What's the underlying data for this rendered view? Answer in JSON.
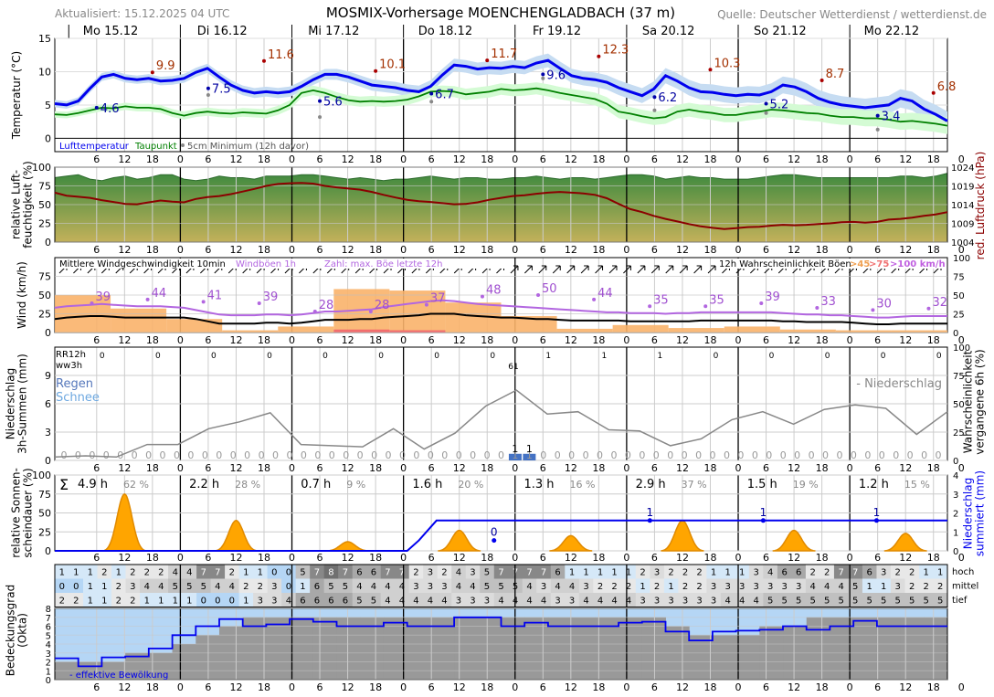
{
  "header": {
    "updated": "Aktualisiert: 15.12.2025 04 UTC",
    "title": "MOSMIX-Vorhersage MOENCHENGLADBACH (37 m)",
    "source": "Quelle: Deutscher Wetterdienst / wetterdienst.de"
  },
  "days": [
    "Mo 15.12",
    "Di 16.12",
    "Mi 17.12",
    "Do 18.12",
    "Fr 19.12",
    "Sa 20.12",
    "So 21.12",
    "Mo 22.12"
  ],
  "hour_ticks": [
    "6",
    "12",
    "18",
    "0"
  ],
  "colors": {
    "temp": "#0000ee",
    "dew": "#008000",
    "pressure": "#8b0000",
    "wind": "#000000",
    "gust": "#b266e0",
    "sun": "#ffa500",
    "precip_sum": "#0000ee",
    "cloud_fill": "#999999",
    "sky": "#b5d6f5"
  },
  "chart_data": [
    {
      "type": "line",
      "title": "",
      "ylabel": "Temperatur (°C)",
      "ylim": [
        -2,
        15
      ],
      "yticks": [
        0,
        5,
        10,
        15
      ],
      "legend": [
        "Lufttemperatur",
        "Taupunkt",
        "5cm Minimum (12h davor)"
      ],
      "series": [
        {
          "name": "Lufttemperatur",
          "values": [
            5.2,
            5.0,
            5.6,
            7.5,
            9.2,
            9.6,
            9.0,
            8.8,
            9.0,
            8.6,
            8.7,
            9.0,
            9.9,
            10.5,
            9.2,
            8.0,
            7.2,
            6.8,
            7.0,
            6.8,
            7.0,
            7.8,
            8.8,
            9.6,
            9.6,
            9.2,
            8.6,
            8.0,
            7.8,
            7.6,
            7.2,
            7.0,
            7.8,
            9.5,
            11.0,
            10.8,
            10.4,
            10.6,
            10.5,
            10.8,
            10.6,
            11.3,
            11.7,
            10.5,
            9.4,
            9.0,
            8.8,
            8.4,
            7.6,
            7.0,
            6.4,
            7.4,
            9.4,
            8.6,
            7.6,
            7.0,
            6.9,
            6.6,
            6.4,
            6.6,
            6.5,
            7.0,
            8.0,
            7.7,
            7.0,
            6.0,
            5.4,
            5.0,
            4.8,
            4.6,
            4.8,
            5.0,
            6.0,
            5.6,
            4.4,
            3.6,
            2.6
          ]
        },
        {
          "name": "Taupunkt",
          "values": [
            3.6,
            3.5,
            3.8,
            4.2,
            4.6,
            4.5,
            4.8,
            4.6,
            4.6,
            4.4,
            3.8,
            3.4,
            3.8,
            4.0,
            3.8,
            3.7,
            3.9,
            3.8,
            3.7,
            4.2,
            5.0,
            6.8,
            7.2,
            6.8,
            6.2,
            5.7,
            5.5,
            5.6,
            5.5,
            5.6,
            5.8,
            6.3,
            7.0,
            7.1,
            7.0,
            6.6,
            6.8,
            7.0,
            7.4,
            7.2,
            7.3,
            7.5,
            7.2,
            6.8,
            6.5,
            6.2,
            5.9,
            5.2,
            4.0,
            3.7,
            3.3,
            3.0,
            3.2,
            4.0,
            4.3,
            4.0,
            3.8,
            3.5,
            3.5,
            3.8,
            4.0,
            4.3,
            4.2,
            4.0,
            3.8,
            3.7,
            3.4,
            3.2,
            3.2,
            3.0,
            3.0,
            2.8,
            2.5,
            2.6,
            2.4,
            2.2,
            1.9
          ]
        }
      ],
      "max_labels": [
        {
          "day": 0,
          "hour": 18,
          "value": "9.9"
        },
        {
          "day": 1,
          "hour": 18,
          "value": "11.6"
        },
        {
          "day": 2,
          "hour": 18,
          "value": "10.1"
        },
        {
          "day": 3,
          "hour": 18,
          "value": "11.7"
        },
        {
          "day": 4,
          "hour": 18,
          "value": "12.3"
        },
        {
          "day": 5,
          "hour": 18,
          "value": "10.3"
        },
        {
          "day": 6,
          "hour": 18,
          "value": "8.7"
        },
        {
          "day": 7,
          "hour": 18,
          "value": "6.8"
        }
      ],
      "min_labels": [
        {
          "day": 0,
          "hour": 6,
          "value": "4.6",
          "ground": null
        },
        {
          "day": 1,
          "hour": 6,
          "value": "7.5",
          "ground": 6.5
        },
        {
          "day": 2,
          "hour": 6,
          "value": "5.6",
          "ground": 3.2
        },
        {
          "day": 3,
          "hour": 6,
          "value": "6.7",
          "ground": 5.5
        },
        {
          "day": 4,
          "hour": 6,
          "value": "9.6",
          "ground": 9.0
        },
        {
          "day": 5,
          "hour": 6,
          "value": "6.2",
          "ground": 4.2
        },
        {
          "day": 6,
          "hour": 6,
          "value": "5.2",
          "ground": 3.8
        },
        {
          "day": 7,
          "hour": 6,
          "value": "3.4",
          "ground": 1.3
        }
      ]
    },
    {
      "type": "area",
      "ylabel": "relative Luft-\nfeuchtigkeit (%)",
      "y2label": "red. Luftdruck (hPa)",
      "ylim": [
        0,
        100
      ],
      "yticks": [
        0,
        25,
        50,
        75,
        100
      ],
      "y2lim": [
        1004,
        1024
      ],
      "y2ticks": [
        1004,
        1009,
        1014,
        1019,
        1024
      ],
      "series": [
        {
          "name": "relative Luftfeuchtigkeit",
          "values": [
            86,
            88,
            90,
            84,
            82,
            86,
            88,
            84,
            86,
            90,
            90,
            84,
            82,
            84,
            88,
            86,
            86,
            84,
            88,
            88,
            88,
            90,
            90,
            88,
            86,
            84,
            86,
            84,
            82,
            84,
            84,
            86,
            88,
            86,
            84,
            86,
            86,
            84,
            84,
            86,
            86,
            88,
            86,
            84,
            86,
            86,
            84,
            86,
            88,
            90,
            90,
            88,
            84,
            86,
            88,
            86,
            86,
            84,
            84,
            84,
            86,
            88,
            90,
            90,
            88,
            86,
            86,
            86,
            86,
            86,
            86,
            86,
            88,
            88,
            86,
            88,
            92
          ]
        },
        {
          "name": "red. Luftdruck",
          "values": [
            1017.2,
            1016.4,
            1016.1,
            1015.8,
            1015.2,
            1014.7,
            1014.2,
            1014.1,
            1014.6,
            1015.1,
            1014.8,
            1014.6,
            1015.5,
            1016.0,
            1016.3,
            1016.8,
            1017.5,
            1018.2,
            1019.0,
            1019.5,
            1019.7,
            1019.8,
            1019.6,
            1019.0,
            1018.6,
            1018.3,
            1018.0,
            1017.4,
            1016.6,
            1015.9,
            1015.3,
            1014.9,
            1014.7,
            1014.4,
            1014.1,
            1014.2,
            1014.6,
            1015.3,
            1015.8,
            1016.3,
            1016.5,
            1016.9,
            1017.2,
            1017.4,
            1017.2,
            1017.0,
            1016.6,
            1015.7,
            1014.2,
            1012.8,
            1012.0,
            1011.0,
            1010.2,
            1009.5,
            1008.8,
            1008.2,
            1007.8,
            1007.5,
            1007.7,
            1008.0,
            1008.1,
            1008.4,
            1008.6,
            1008.5,
            1008.6,
            1008.8,
            1009.0,
            1009.3,
            1009.4,
            1009.2,
            1009.4,
            1010.0,
            1010.2,
            1010.5,
            1011.0,
            1011.4,
            1012.0
          ]
        }
      ]
    },
    {
      "type": "bar",
      "ylabel": "Wind (km/h)",
      "ylim": [
        0,
        100
      ],
      "yticks": [
        0,
        25,
        50,
        75
      ],
      "y2ticks": [
        0,
        25,
        50,
        75,
        100
      ],
      "legend_mean": "Mittlere Windgeschwindigkeit 10min",
      "legend_gust": "Windböen 1h",
      "legend_count": "Zahl: max. Böe letzte 12h",
      "legend_prob": "12h Wahrscheinlichkeit Böen",
      "prob_thresholds": [
        ">45",
        ">75",
        ">100 km/h"
      ],
      "mean": [
        18,
        20,
        21,
        22,
        22,
        21,
        20,
        20,
        20,
        20,
        20,
        20,
        18,
        15,
        12,
        12,
        12,
        12,
        13,
        13,
        12,
        13,
        15,
        17,
        17,
        17,
        18,
        18,
        20,
        21,
        22,
        23,
        25,
        25,
        25,
        23,
        22,
        21,
        20,
        20,
        19,
        18,
        18,
        17,
        16,
        16,
        16,
        16,
        16,
        15,
        15,
        15,
        15,
        15,
        15,
        16,
        16,
        16,
        16,
        16,
        16,
        16,
        15,
        15,
        14,
        14,
        14,
        14,
        13,
        12,
        11,
        11,
        12,
        12,
        12,
        12,
        12
      ],
      "gust": [
        33,
        35,
        36,
        37,
        38,
        37,
        36,
        35,
        35,
        35,
        34,
        33,
        30,
        27,
        24,
        23,
        23,
        23,
        24,
        24,
        23,
        24,
        26,
        28,
        28,
        29,
        30,
        31,
        34,
        36,
        38,
        40,
        42,
        43,
        42,
        40,
        38,
        37,
        36,
        35,
        34,
        33,
        32,
        31,
        30,
        29,
        28,
        27,
        27,
        26,
        26,
        26,
        25,
        26,
        26,
        27,
        27,
        27,
        27,
        27,
        27,
        27,
        26,
        25,
        24,
        24,
        23,
        23,
        22,
        21,
        20,
        20,
        21,
        22,
        22,
        22,
        22
      ],
      "prob_45": [
        50,
        32,
        18,
        3,
        8,
        58,
        56,
        40,
        22,
        5,
        10,
        6,
        8,
        4,
        3,
        3
      ],
      "prob_75": [
        0,
        0,
        0,
        0,
        0,
        4,
        3,
        0,
        0,
        0,
        0,
        0,
        0,
        0,
        0,
        0
      ],
      "max_labels": [
        "39",
        "44",
        "41",
        "39",
        "28",
        "28",
        "37",
        "48",
        "50",
        "44",
        "35",
        "35",
        "39",
        "33",
        "30",
        "32"
      ]
    },
    {
      "type": "line",
      "ylabel": "Niederschlag\n3h-Summen (mm)",
      "y2label": "Wahrscheinlichkeit\nvergangene 6h (%)",
      "ylim": [
        0,
        12
      ],
      "yticks": [
        0,
        3,
        6,
        9
      ],
      "y2ticks": [
        0,
        25,
        50,
        75,
        100
      ],
      "rr12h_label": "RR12h",
      "ww3h_label": "ww3h",
      "rain_label": "Regen",
      "snow_label": "Schnee",
      "legend": "- Niederschlag",
      "rr12h": [
        "0",
        "0",
        "0",
        "0",
        "0",
        "0",
        "0",
        "0",
        "1",
        "1",
        "1",
        "0",
        "0",
        "0",
        "0",
        "0"
      ],
      "ww3h_code": "61",
      "precip_3h": [
        "0",
        "0",
        "0",
        "0",
        "0",
        "0",
        "0",
        "0",
        "0",
        "0",
        "0",
        "0",
        "0",
        "0",
        "0",
        "0",
        "0",
        "0",
        "0",
        "0",
        "0",
        "0",
        "0",
        "0",
        "0",
        "0",
        "0",
        "0",
        "0",
        "0",
        "0",
        "0",
        "1",
        "1",
        "0",
        "0",
        "0",
        "0",
        "0",
        "0",
        "0",
        "0",
        "0",
        "0",
        "0",
        "0",
        "0",
        "0",
        "0",
        "0",
        "0",
        "0",
        "0",
        "0",
        "0",
        "0",
        "0",
        "0",
        "0",
        "0",
        "0",
        "0",
        "0"
      ],
      "precip_bars": [
        {
          "index": 32,
          "value": 1
        },
        {
          "index": 33,
          "value": 1
        }
      ],
      "probability_6h": [
        3,
        4,
        3,
        14,
        14,
        28,
        34,
        42,
        14,
        13,
        12,
        28,
        10,
        24,
        48,
        62,
        41,
        43,
        27,
        26,
        13,
        19,
        36,
        43,
        32,
        45,
        49,
        46,
        23,
        43
      ]
    },
    {
      "type": "area",
      "ylabel": "relative Sonnen-\nscheindauer (%)",
      "y2label": "Niederschlag\nsummiert (mm)",
      "ylim": [
        0,
        100
      ],
      "yticks": [
        0,
        25,
        50,
        75,
        100
      ],
      "y2lim": [
        0,
        4
      ],
      "y2ticks": [
        0,
        1,
        2,
        3,
        4
      ],
      "sigma": "Σ",
      "daily_hours": [
        "4.9 h",
        "2.2 h",
        "0.7 h",
        "1.6 h",
        "1.3 h",
        "2.9 h",
        "1.5 h",
        "1.2 h"
      ],
      "daily_percent": [
        "62 %",
        "28 %",
        "9 %",
        "20 %",
        "16 %",
        "37 %",
        "19 %",
        "15 %"
      ],
      "sun_peaks": [
        75,
        40,
        12,
        27,
        20,
        40,
        27,
        23
      ],
      "precip_sum_labels": [
        {
          "index": 31,
          "value": "0"
        },
        {
          "index": 42,
          "value": "1"
        },
        {
          "index": 50,
          "value": "1"
        },
        {
          "index": 58,
          "value": "1"
        }
      ],
      "precip_sum": [
        {
          "x": 0,
          "y": 0
        },
        {
          "x": 30,
          "y": 0
        },
        {
          "x": 31,
          "y": 0.55
        },
        {
          "x": 32.5,
          "y": 1.6
        },
        {
          "x": 76,
          "y": 1.6
        }
      ]
    },
    {
      "type": "table",
      "rows": [
        "hoch",
        "mittel",
        "tief"
      ],
      "hoch": [
        1,
        1,
        1,
        2,
        1,
        2,
        2,
        2,
        4,
        4,
        7,
        7,
        2,
        1,
        1,
        0,
        0,
        5,
        7,
        8,
        7,
        6,
        6,
        7,
        7,
        2,
        3,
        2,
        4,
        3,
        5,
        7,
        7,
        7,
        7,
        6,
        1,
        1,
        1,
        1,
        1,
        2,
        3,
        2,
        2,
        2,
        1,
        1,
        1,
        3,
        4,
        6,
        6,
        2,
        2,
        7,
        7,
        6,
        3,
        2,
        2,
        1,
        1
      ],
      "mittel": [
        0,
        0,
        1,
        1,
        2,
        3,
        4,
        4,
        5,
        5,
        5,
        4,
        4,
        2,
        2,
        3,
        0,
        1,
        6,
        5,
        5,
        4,
        4,
        4,
        4,
        3,
        3,
        3,
        4,
        4,
        5,
        5,
        5,
        4,
        3,
        4,
        4,
        3,
        2,
        2,
        2,
        1,
        2,
        1,
        2,
        2,
        3,
        3,
        3,
        3,
        3,
        3,
        3,
        4,
        4,
        4,
        5,
        1,
        1,
        3,
        2,
        2,
        2
      ],
      "tief": [
        2,
        2,
        1,
        1,
        2,
        2,
        1,
        1,
        1,
        1,
        0,
        0,
        0,
        1,
        3,
        3,
        4,
        6,
        6,
        6,
        6,
        5,
        5,
        4,
        4,
        4,
        4,
        4,
        3,
        3,
        3,
        4,
        4,
        4,
        4,
        3,
        3,
        4,
        4,
        4,
        4,
        3,
        3,
        3,
        3,
        3,
        3,
        4,
        4,
        4,
        5,
        5,
        5,
        5,
        5,
        5,
        5,
        5,
        5,
        5,
        5,
        5,
        5
      ]
    },
    {
      "type": "area",
      "ylabel": "Bedeckungsgrad\n(Okta)",
      "ylim": [
        0,
        8
      ],
      "yticks": [
        0,
        1,
        2,
        3,
        4,
        5,
        6,
        7,
        8
      ],
      "legend": "- effektive Bewölkung",
      "effective": [
        2.4,
        1.5,
        2.5,
        2.6,
        3.5,
        5.0,
        6.0,
        6.8,
        6.0,
        6.2,
        6.8,
        6.5,
        6.0,
        6.0,
        6.4,
        6.0,
        6.0,
        7.0,
        7.0,
        6.0,
        6.4,
        6.0,
        6.0,
        6.0,
        6.4,
        6.5,
        5.4,
        4.4,
        5.4,
        5.5,
        5.6,
        6.0,
        5.6,
        6.0,
        6.6,
        6.0,
        6.0,
        6.0,
        6.0
      ],
      "total": [
        2,
        2,
        2,
        3,
        3,
        4,
        5,
        6,
        7,
        7,
        7,
        7,
        7,
        7,
        7,
        7,
        7,
        7,
        7,
        7,
        7,
        7,
        7,
        7,
        7,
        7,
        6,
        5,
        5,
        5,
        6,
        6,
        7,
        7,
        7,
        7,
        7,
        7,
        7
      ]
    }
  ]
}
